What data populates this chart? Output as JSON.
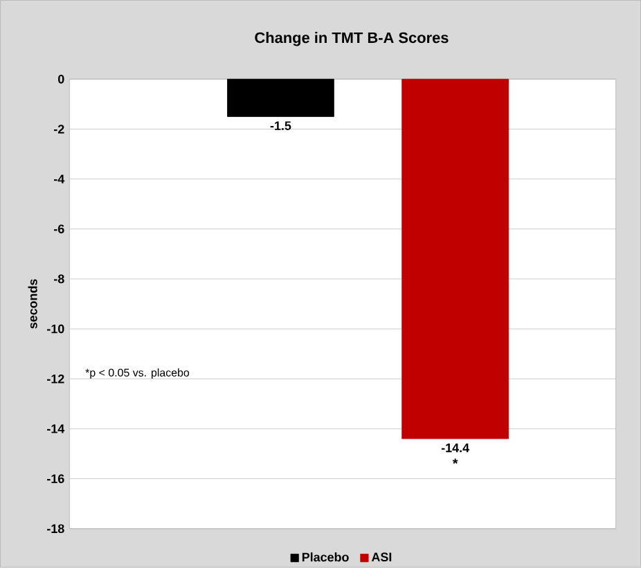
{
  "chart_data": {
    "type": "bar",
    "title": "Change in TMT B-A Scores",
    "ylabel": "seconds",
    "categories": [
      null,
      null
    ],
    "series": [
      {
        "name": "Placebo",
        "color": "#000000",
        "values": [
          -1.5,
          null
        ]
      },
      {
        "name": "ASI",
        "color": "#c00000",
        "values": [
          null,
          -14.4
        ]
      }
    ],
    "ylim": [
      -18,
      0
    ],
    "yticks": [
      0,
      -2,
      -4,
      -6,
      -8,
      -10,
      -12,
      -14,
      -16,
      -18
    ],
    "grid": "y",
    "legend": "bottom",
    "data_labels": true,
    "annotations": [
      "*p < 0.05 vs. placebo",
      "*"
    ]
  }
}
